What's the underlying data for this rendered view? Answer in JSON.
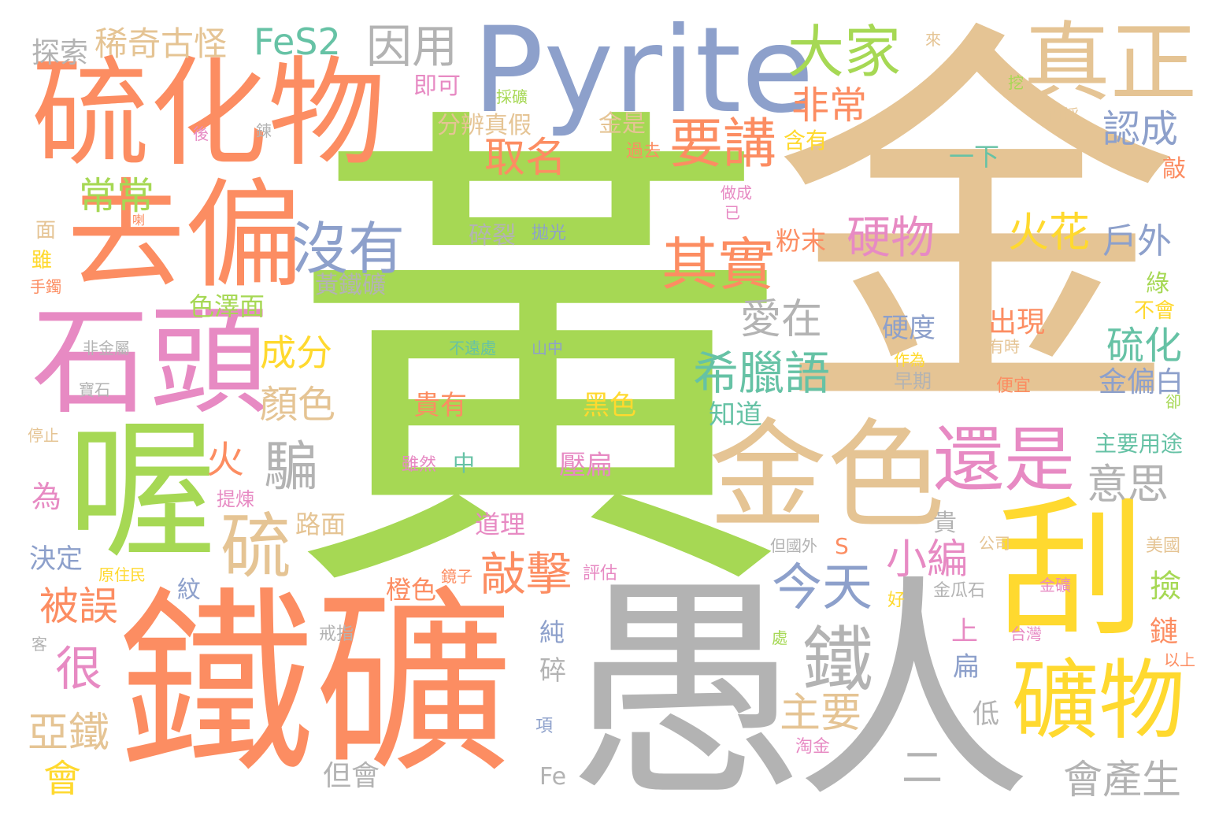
{
  "words": {
    "huang": "黃",
    "jin": "金",
    "yu": "愚",
    "ren": "人",
    "tiekuang": "鐵礦",
    "gua": "刮",
    "liuhuawu": "硫化物",
    "pyrite": "Pyrite",
    "zhenzheng": "真正",
    "qupian": "去偏",
    "shitou": "石頭",
    "wo": "喔",
    "jinse": "金色",
    "kuangwu": "礦物",
    "haishi": "還是",
    "dajia": "大家",
    "yaojiang": "要講",
    "qishi": "其實",
    "meiyou": "沒有",
    "fes2": "FeS2",
    "yinyong": "因用",
    "xiqiguguai": "稀奇古怪",
    "tansuo": "探索",
    "feichang": "非常",
    "rencheng": "認成",
    "quming": "取名",
    "changchang": "常常",
    "xilayu": "希臘語",
    "yingwu": "硬物",
    "huohua": "火花",
    "huwai": "戶外",
    "aizai": "愛在",
    "liuhua": "硫化",
    "jinpianbai": "金偏白",
    "chengfen": "成分",
    "yanse": "顏色",
    "huo": "火",
    "pian": "騙",
    "liu": "硫",
    "yisi": "意思",
    "tie": "鐵",
    "jintian": "今天",
    "xiaobian": "小編",
    "qiaoji": "敲擊",
    "zhuyao": "主要",
    "huichansheng": "會產生",
    "beiwu": "被誤",
    "hen": "很",
    "yatie": "亞鐵",
    "hui": "會",
    "danhui": "但會",
    "er": "二",
    "zhidao": "知道",
    "chuxian": "出現",
    "yingdu": "硬度",
    "guiyou": "貴有",
    "heise": "黑色",
    "zhong": "中",
    "suiran": "雖然",
    "yabian": "壓扁",
    "suilie": "碎裂",
    "paoguang": "拋光",
    "huangtiekuang": "黃鐵礦",
    "sezemian": "色澤面",
    "fenmo": "粉末",
    "fenbianzhenjia": "分辨真假",
    "jike": "即可",
    "caikuang": "採礦",
    "jinshi": "金是",
    "guoqu": "過去",
    "hanyou": "含有",
    "yixia": "一下",
    "zuocheng": "做成",
    "yi": "已",
    "mian": "面",
    "zhuangjia": "雖",
    "shouzhuo": "手鐲",
    "feijinshu": "非金屬",
    "baoshi": "寶石",
    "tingzhi": "停止",
    "wei": "為",
    "tilian": "提煉",
    "lumian": "路面",
    "juedin": "決定",
    "yuanzhumin": "原住民",
    "wen": "紋",
    "jingzi": "鏡子",
    "pinggu": "評估",
    "chengse": "橙色",
    "daoli": "道理",
    "bushangchu": "不遠處",
    "shanzhong": "山中",
    "lu": "綠",
    "buhui": "不會",
    "youshi": "有時",
    "zaoqi": "早期",
    "zuowei": "作為",
    "pianyi": "便宜",
    "que": "卻",
    "zhuyaoyongtu": "主要用途",
    "gui": "貴",
    "s": "S",
    "dangguowai": "但國外",
    "gongsi": "公司",
    "meiguo": "美國",
    "jian": "撿",
    "jinkuang": "金礦",
    "jingguashi": "金瓜石",
    "hao": "好",
    "taiwan": "台灣",
    "bian": "扁",
    "shang": "上",
    "chun": "純",
    "sui": "碎",
    "jiezhi": "戒指",
    "chu": "處",
    "di": "低",
    "xiang": "項",
    "taojin": "淘金",
    "fe": "Fe",
    "yishang": "以上",
    "lian": "鏈",
    "ke": "客",
    "lai": "來",
    "wa": "挖",
    "kaicai": "開採",
    "qiao": "敲",
    "hou": "後",
    "lian2": "鍊",
    "la": "喇"
  }
}
